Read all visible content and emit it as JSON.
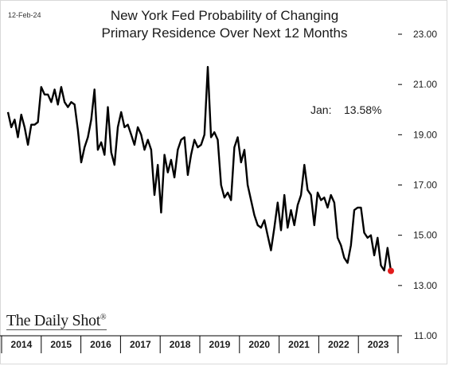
{
  "date_stamp": "12-Feb-24",
  "brand": "The Daily Shot",
  "brand_mark": "®",
  "chart_data": {
    "type": "line",
    "title_line1": "New York Fed Probability of Changing",
    "title_line2": "Primary Residence Over Next 12 Months",
    "annotation": "Jan:    13.58%",
    "ylim": [
      11.0,
      23.0
    ],
    "yticks": [
      "11.00",
      "13.00",
      "15.00",
      "17.00",
      "19.00",
      "21.00",
      "23.00"
    ],
    "ytick_values": [
      11,
      13,
      15,
      17,
      19,
      21,
      23
    ],
    "xticks": [
      "2014",
      "2015",
      "2016",
      "2017",
      "2018",
      "2019",
      "2020",
      "2021",
      "2022",
      "2023"
    ],
    "line_color": "#000000",
    "last_point_color": "#e31b1b",
    "grid": false,
    "series": [
      {
        "values": [
          19.9,
          19.3,
          19.6,
          18.9,
          19.8,
          19.3,
          18.6,
          19.4,
          19.4,
          19.5,
          20.9,
          20.6,
          20.6,
          20.3,
          20.8,
          20.2,
          20.9,
          20.3,
          20.1,
          20.3,
          20.2,
          19.2,
          17.9,
          18.5,
          18.9,
          19.6,
          20.8,
          18.4,
          18.7,
          18.2,
          20.1,
          18.3,
          17.8,
          19.3,
          19.9,
          19.3,
          19.4,
          19.0,
          18.6,
          19.3,
          19.0,
          18.4,
          18.8,
          18.4,
          16.6,
          17.8,
          15.9,
          18.2,
          17.5,
          18.0,
          17.3,
          18.4,
          18.8,
          18.9,
          17.4,
          18.2,
          18.8,
          18.5,
          18.6,
          19.0,
          21.7,
          18.9,
          19.1,
          18.8,
          17.0,
          16.5,
          16.7,
          16.4,
          18.5,
          18.9,
          17.9,
          18.4,
          17.0,
          16.4,
          15.8,
          15.4,
          15.3,
          15.6,
          15.0,
          14.4,
          15.3,
          16.3,
          15.2,
          16.6,
          15.3,
          16.0,
          15.4,
          16.2,
          16.6,
          17.8,
          16.8,
          16.6,
          15.4,
          16.7,
          16.4,
          16.5,
          16.1,
          16.6,
          16.3,
          14.9,
          14.6,
          14.1,
          13.9,
          14.6,
          16.0,
          16.1,
          16.1,
          15.1,
          14.9,
          15.0,
          14.2,
          14.9,
          13.8,
          13.6,
          14.5,
          13.58
        ]
      }
    ]
  }
}
